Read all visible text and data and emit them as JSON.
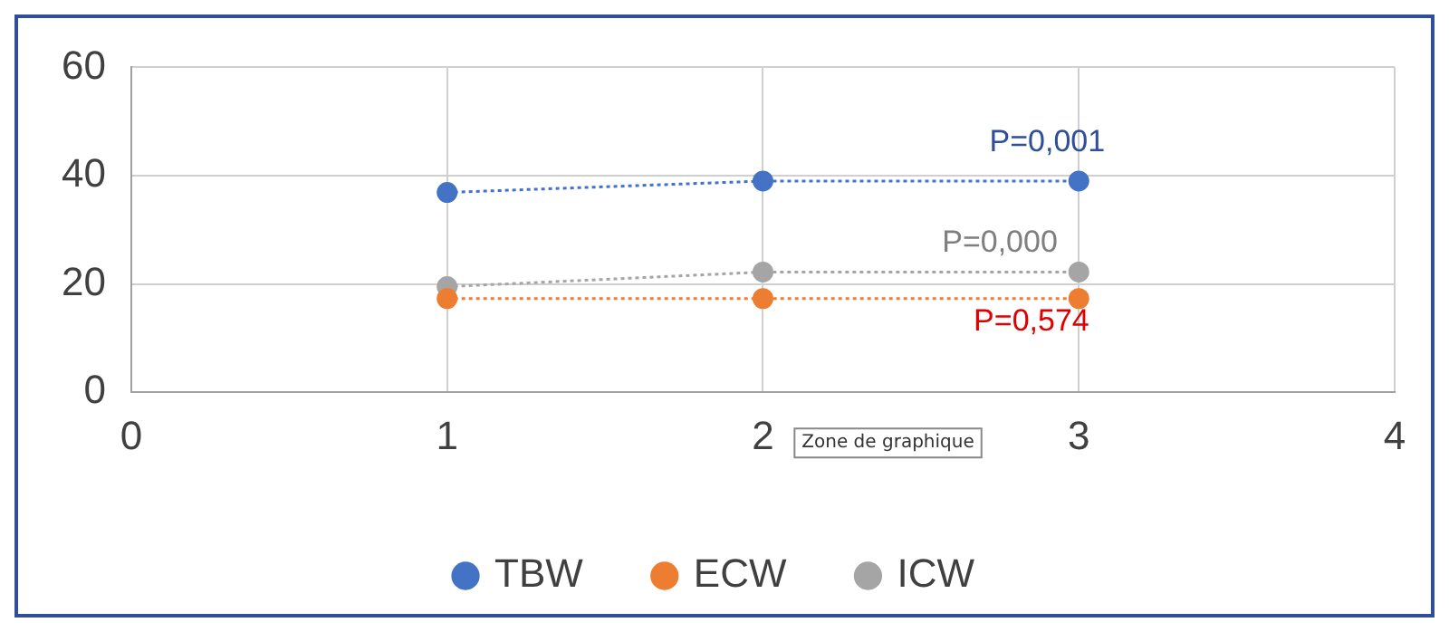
{
  "chart_data": {
    "type": "line",
    "x": [
      1,
      2,
      3
    ],
    "xlim": [
      0,
      4
    ],
    "xticks": [
      0,
      1,
      2,
      3,
      4
    ],
    "ylim": [
      0,
      60
    ],
    "yticks": [
      0,
      20,
      40,
      60
    ],
    "grid": true,
    "legend": "bottom",
    "marker": "circle",
    "line_style": "dotted",
    "series": [
      {
        "name": "TBW",
        "color": "#4472c4",
        "values": [
          36.9,
          39.0,
          39.0
        ]
      },
      {
        "name": "ECW",
        "color": "#ed7d31",
        "values": [
          17.3,
          17.3,
          17.3
        ]
      },
      {
        "name": "ICW",
        "color": "#a5a5a5",
        "values": [
          19.5,
          22.2,
          22.2
        ]
      }
    ],
    "annotations": [
      "P=0,001",
      "P=0,000",
      "P=0,574",
      "Zone de graphique"
    ]
  }
}
